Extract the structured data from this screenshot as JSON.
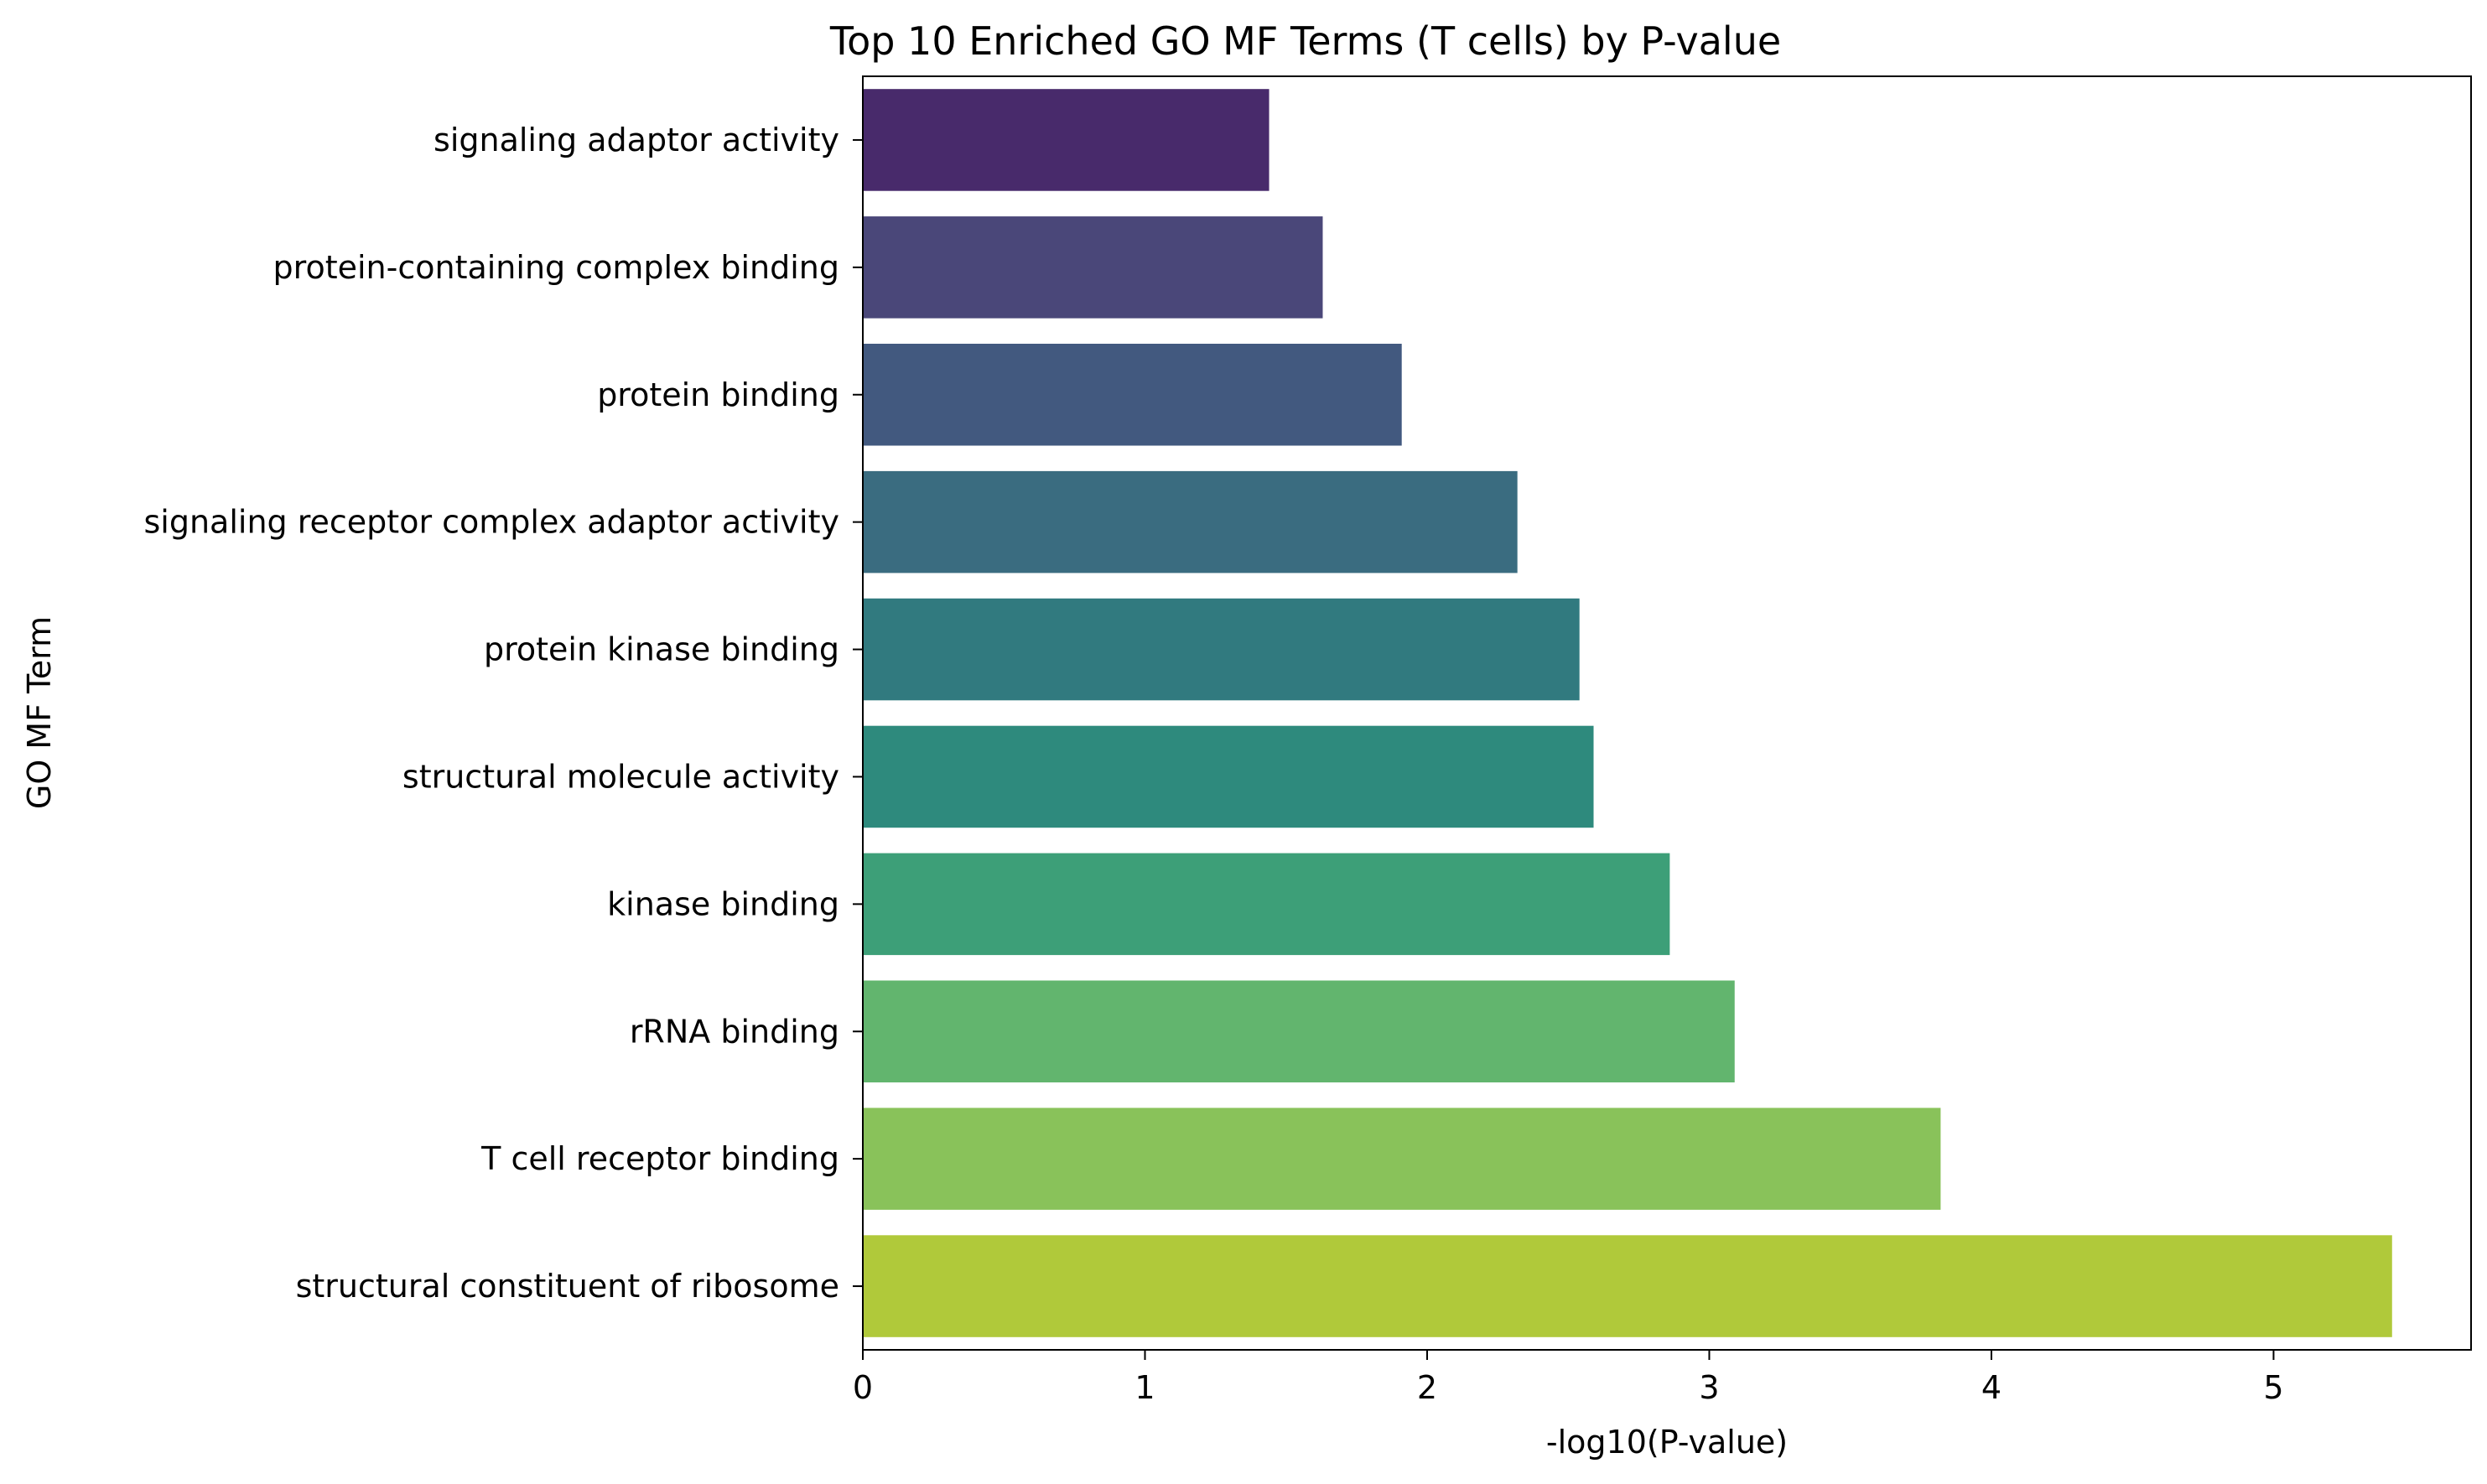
{
  "chart_data": {
    "type": "bar",
    "orientation": "horizontal",
    "title": "Top 10 Enriched GO MF Terms (T cells) by P-value",
    "xlabel": "-log10(P-value)",
    "ylabel": "GO MF Term",
    "categories": [
      "signaling adaptor activity",
      "protein-containing complex binding",
      "protein binding",
      "signaling receptor complex adaptor activity",
      "protein kinase binding",
      "structural molecule activity",
      "kinase binding",
      "rRNA binding",
      "T cell receptor binding",
      "structural constituent of ribosome"
    ],
    "values": [
      1.44,
      1.63,
      1.91,
      2.32,
      2.54,
      2.59,
      2.86,
      3.09,
      3.82,
      5.42
    ],
    "colors": [
      "#482a6b",
      "#4a4779",
      "#42597f",
      "#3a6c80",
      "#317a7f",
      "#2e8a7d",
      "#3d9f78",
      "#62b56e",
      "#89c25a",
      "#b0c93a"
    ],
    "xlim": [
      0,
      5.7
    ],
    "xticks": [
      0,
      1,
      2,
      3,
      4,
      5
    ],
    "grid": false,
    "legend": "none"
  }
}
